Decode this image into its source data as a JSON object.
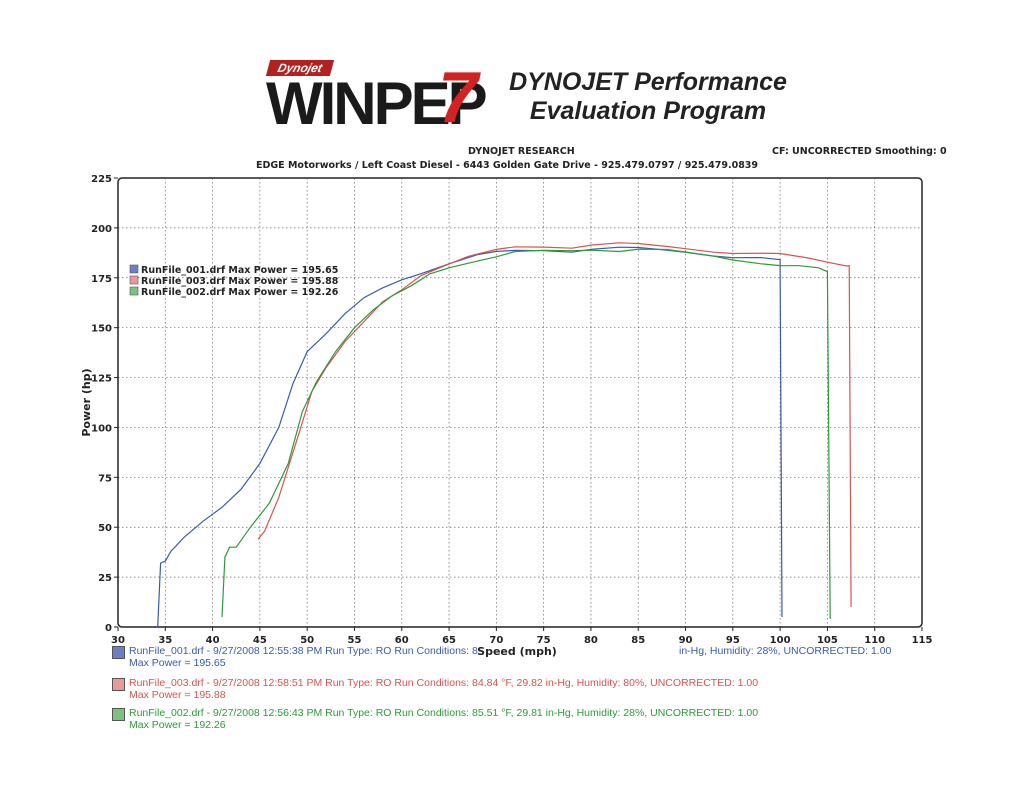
{
  "header": {
    "logo_brand": "Dynojet",
    "logo_main": "WINPEP",
    "logo_number": "7",
    "program_line1": "DYNOJET Performance",
    "program_line2": "Evaluation Program",
    "org": "DYNOJET RESEARCH",
    "shop": "EDGE Motorworks / Left Coast Diesel - 6443 Golden Gate Drive - 925.479.0797 / 925.479.0839",
    "settings": "CF: UNCORRECTED  Smoothing: 0"
  },
  "colors": {
    "blue": "#3a5bab",
    "red": "#d9534f",
    "green": "#2e9a3a",
    "grid": "#555555"
  },
  "chart_data": {
    "type": "line",
    "xlabel": "Speed (mph)",
    "ylabel": "Power (hp)",
    "xlim": [
      30,
      115
    ],
    "ylim": [
      0,
      225
    ],
    "x_ticks": [
      30,
      35,
      40,
      45,
      50,
      55,
      60,
      65,
      70,
      75,
      80,
      85,
      90,
      95,
      100,
      105,
      110,
      115
    ],
    "y_ticks": [
      0,
      25,
      50,
      75,
      100,
      125,
      150,
      175,
      200,
      225
    ],
    "grid": true,
    "legend_position": "top-left",
    "legend": [
      "RunFile_001.drf Max Power = 195.65",
      "RunFile_003.drf Max Power = 195.88",
      "RunFile_002.drf Max Power = 192.26"
    ],
    "series": [
      {
        "name": "RunFile_001.drf",
        "color": "blue",
        "points": [
          [
            34.2,
            0
          ],
          [
            34.5,
            32
          ],
          [
            35,
            33
          ],
          [
            35.6,
            38
          ],
          [
            37,
            45
          ],
          [
            39,
            53
          ],
          [
            41,
            60
          ],
          [
            43,
            69
          ],
          [
            45,
            82
          ],
          [
            47,
            100
          ],
          [
            48.5,
            122
          ],
          [
            50,
            138
          ],
          [
            52,
            147
          ],
          [
            54,
            157
          ],
          [
            56,
            165
          ],
          [
            58,
            170
          ],
          [
            60,
            174
          ],
          [
            62,
            177
          ],
          [
            65,
            182
          ],
          [
            68,
            186
          ],
          [
            70,
            187
          ],
          [
            72,
            188
          ],
          [
            75,
            189
          ],
          [
            78,
            189
          ],
          [
            80,
            190
          ],
          [
            83,
            190
          ],
          [
            85,
            189
          ],
          [
            88,
            188
          ],
          [
            90,
            188
          ],
          [
            93,
            187
          ],
          [
            95,
            186
          ],
          [
            98,
            185
          ],
          [
            100,
            183
          ],
          [
            100.2,
            5
          ]
        ]
      },
      {
        "name": "RunFile_003.drf",
        "color": "red",
        "points": [
          [
            44.8,
            44
          ],
          [
            45.5,
            48
          ],
          [
            47,
            65
          ],
          [
            49,
            95
          ],
          [
            50.5,
            118
          ],
          [
            52,
            130
          ],
          [
            54,
            143
          ],
          [
            56,
            153
          ],
          [
            58,
            163
          ],
          [
            60,
            169
          ],
          [
            62,
            176
          ],
          [
            64,
            180
          ],
          [
            67,
            185
          ],
          [
            70,
            188
          ],
          [
            72,
            190
          ],
          [
            75,
            191
          ],
          [
            78,
            191
          ],
          [
            80,
            192
          ],
          [
            83,
            192
          ],
          [
            85,
            191
          ],
          [
            88,
            190
          ],
          [
            90,
            190
          ],
          [
            93,
            189
          ],
          [
            95,
            188
          ],
          [
            98,
            187
          ],
          [
            100,
            186
          ],
          [
            103,
            184
          ],
          [
            105,
            183
          ],
          [
            107,
            182
          ],
          [
            107.3,
            182
          ],
          [
            107.5,
            10
          ]
        ]
      },
      {
        "name": "RunFile_002.drf",
        "color": "green",
        "points": [
          [
            41,
            5
          ],
          [
            41.3,
            35
          ],
          [
            41.8,
            40
          ],
          [
            42.5,
            40
          ],
          [
            44,
            50
          ],
          [
            46,
            62
          ],
          [
            48,
            82
          ],
          [
            49.5,
            108
          ],
          [
            51,
            123
          ],
          [
            53,
            138
          ],
          [
            55,
            150
          ],
          [
            57,
            159
          ],
          [
            59,
            166
          ],
          [
            61,
            171
          ],
          [
            63,
            177
          ],
          [
            65,
            180
          ],
          [
            68,
            184
          ],
          [
            70,
            185
          ],
          [
            72,
            187
          ],
          [
            75,
            188
          ],
          [
            78,
            189
          ],
          [
            80,
            190
          ],
          [
            83,
            189
          ],
          [
            85,
            189
          ],
          [
            88,
            188
          ],
          [
            90,
            187
          ],
          [
            93,
            186
          ],
          [
            95,
            185
          ],
          [
            98,
            183
          ],
          [
            100,
            181
          ],
          [
            102,
            180
          ],
          [
            104,
            179
          ],
          [
            105,
            178
          ],
          [
            105.3,
            4
          ]
        ]
      }
    ]
  },
  "footer": [
    {
      "swatch": "blue",
      "text": "RunFile_001.drf - 9/27/2008 12:55:38 PM  Run Type: RO  Run Conditions: 8",
      "max": "Max Power = 195.65"
    },
    {
      "swatch": "red",
      "text": "RunFile_003.drf - 9/27/2008 12:58:51 PM  Run Type: RO  Run Conditions: 84.84 °F, 29.82 in-Hg,  Humidity:  80%, UNCORRECTED: 1.00",
      "max": "Max Power = 195.88"
    },
    {
      "swatch": "green",
      "text": "RunFile_002.drf - 9/27/2008 12:56:43 PM  Run Type: RO  Run Conditions: 85.51 °F, 29.81 in-Hg,  Humidity:  28%, UNCORRECTED: 1.00",
      "max": "Max Power = 192.26"
    }
  ],
  "footer_tail": "in-Hg,  Humidity:  28%, UNCORRECTED: 1.00"
}
